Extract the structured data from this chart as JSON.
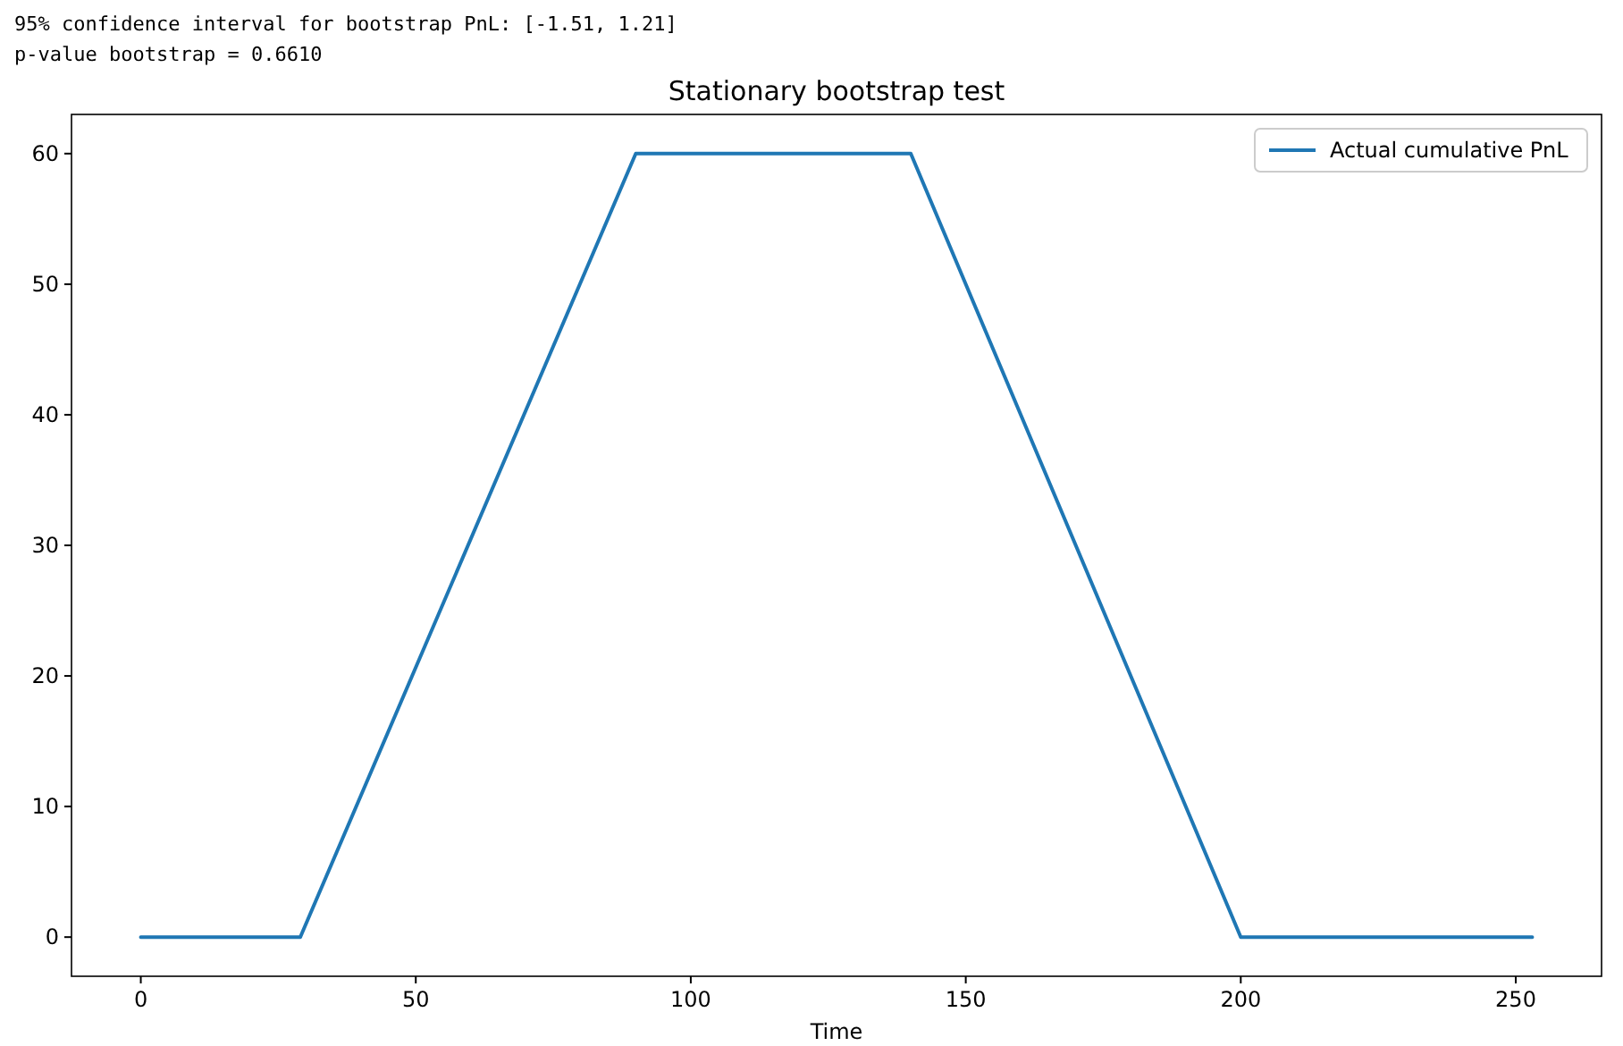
{
  "chart_data": {
    "type": "line",
    "title": "Stationary bootstrap test",
    "xlabel": "Time",
    "annotations": [
      "95% confidence interval for bootstrap PnL: [-1.51, 1.21]",
      "p-value bootstrap = 0.6610"
    ],
    "series": [
      {
        "name": "Actual cumulative PnL",
        "color": "#1f77b4",
        "x": [
          0,
          29,
          90,
          140,
          200,
          253
        ],
        "values": [
          0,
          0,
          60,
          60,
          0,
          0
        ]
      }
    ],
    "xlim": [
      -12.6,
      265.6
    ],
    "ylim": [
      -3,
      63
    ],
    "xticks": [
      0,
      50,
      100,
      150,
      200,
      250
    ],
    "yticks": [
      0,
      10,
      20,
      30,
      40,
      50,
      60
    ],
    "legend": "top right",
    "grid": false,
    "marker": "none",
    "line_style": "solid"
  }
}
